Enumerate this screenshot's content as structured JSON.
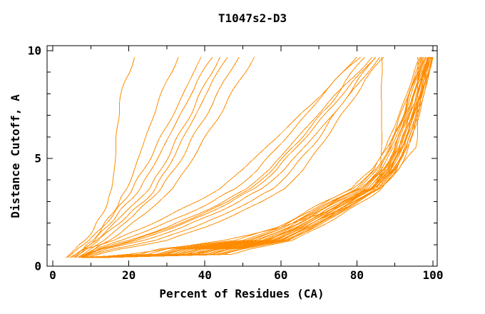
{
  "page": {
    "background_color": "#ffffff",
    "text_color": "#000000"
  },
  "chart_data": {
    "type": "line",
    "title": "T1047s2-D3",
    "xlabel": "Percent of Residues (CA)",
    "ylabel": "Distance Cutoff, A",
    "xlim": [
      0,
      100
    ],
    "ylim": [
      0,
      10
    ],
    "x_major_ticks": [
      0,
      20,
      40,
      60,
      80,
      100
    ],
    "x_minor_ticks": [
      10,
      30,
      50,
      70,
      90
    ],
    "y_major_ticks": [
      0,
      5,
      10
    ],
    "y_minor_ticks": [
      1,
      2,
      3,
      4,
      6,
      7,
      8,
      9
    ],
    "grid": false,
    "legend": "none",
    "line_color": "#ff8c00",
    "axis_color": "#000000",
    "curve_count": 40,
    "y_levels": [
      0.4,
      0.55,
      0.8,
      1.2,
      1.8,
      2.4,
      3.0,
      3.6,
      4.5,
      5.5,
      6.5,
      7.5,
      8.6,
      9.7
    ],
    "series_x_at_y_levels": [
      [
        10,
        35,
        40,
        57,
        64,
        70,
        76,
        83,
        88,
        91,
        93,
        95,
        97,
        99
      ],
      [
        11,
        38,
        43,
        59,
        66,
        72,
        78,
        84,
        89,
        92,
        94,
        96,
        97.5,
        99.5
      ],
      [
        9,
        31,
        36,
        55,
        63,
        69,
        75,
        82,
        87,
        90,
        92,
        94,
        96,
        98
      ],
      [
        12,
        41,
        46,
        60,
        67,
        73,
        79,
        85,
        89.5,
        92.5,
        94.5,
        96,
        98,
        99.8
      ],
      [
        8,
        27,
        32,
        52,
        61,
        67,
        73,
        80,
        85,
        88.5,
        91,
        93,
        95,
        97
      ],
      [
        13,
        43,
        48,
        61,
        68,
        74,
        80,
        85.5,
        90,
        93,
        95,
        96.5,
        98,
        100
      ],
      [
        10,
        33,
        38,
        56,
        64.5,
        70.5,
        76.5,
        83,
        87.5,
        90.5,
        92.5,
        94.5,
        96.5,
        98.5
      ],
      [
        11,
        37,
        42,
        58,
        65.5,
        71.5,
        77.5,
        84,
        88.5,
        91.5,
        93.5,
        95.5,
        97,
        99
      ],
      [
        9.5,
        29,
        34,
        53,
        62,
        68,
        74,
        81,
        86,
        89,
        91.5,
        93.5,
        95.5,
        97.5
      ],
      [
        12.5,
        40,
        45,
        59.5,
        66.5,
        72.5,
        78.5,
        84.5,
        89,
        92,
        94,
        95.8,
        97.6,
        99.4
      ],
      [
        8.5,
        25,
        30,
        50,
        60,
        66,
        72,
        79,
        84.5,
        88,
        90.5,
        92.5,
        94.8,
        96.8
      ],
      [
        13.5,
        45,
        50,
        62,
        69,
        75,
        80.5,
        86,
        90.5,
        93.2,
        95.2,
        96.8,
        98.3,
        100
      ],
      [
        10.5,
        34,
        39,
        56.5,
        65,
        71,
        77,
        83.5,
        88,
        91,
        93,
        95,
        96.8,
        98.8
      ],
      [
        11.5,
        39,
        44,
        58.5,
        66,
        72,
        78,
        84.2,
        88.8,
        91.8,
        93.8,
        95.6,
        97.2,
        99.2
      ],
      [
        9,
        30,
        35,
        54,
        62.5,
        68.5,
        74.5,
        81.5,
        86.5,
        89.5,
        92,
        94,
        96,
        98
      ],
      [
        12,
        42,
        47,
        60.5,
        67.5,
        73.5,
        79.5,
        85,
        89.8,
        92.8,
        94.8,
        96.3,
        98,
        99.6
      ],
      [
        7.5,
        23,
        28,
        48,
        59,
        65.5,
        71.5,
        78.5,
        84,
        87.5,
        90,
        92,
        94.4,
        96.5
      ],
      [
        14,
        47,
        52,
        63,
        70,
        76,
        81.5,
        86.5,
        91,
        93.5,
        95.5,
        97,
        98.6,
        100
      ],
      [
        10,
        32,
        37,
        55.5,
        64,
        70,
        76,
        82.5,
        87.2,
        90.2,
        92.2,
        94.2,
        96.2,
        98.2
      ],
      [
        11,
        36,
        41,
        57.5,
        65,
        71,
        77,
        83.8,
        88.2,
        91.2,
        93.2,
        95.2,
        96.9,
        98.9
      ],
      [
        9.5,
        28,
        33,
        51,
        61,
        67.5,
        73.5,
        80.5,
        85.5,
        88.8,
        91.2,
        93.2,
        95.2,
        97.2
      ],
      [
        13,
        44,
        49,
        61.5,
        68.5,
        74.5,
        80,
        85.8,
        90.2,
        93,
        95,
        96.6,
        98.2,
        99.8
      ],
      [
        7,
        9,
        12,
        20,
        30,
        38,
        45,
        51,
        57,
        62,
        67,
        72,
        78,
        84
      ],
      [
        8,
        10,
        14,
        24,
        34,
        42,
        49,
        55,
        61,
        66,
        71,
        76,
        81,
        86
      ],
      [
        6.5,
        8.5,
        11,
        18,
        27,
        35,
        42,
        48,
        54,
        59,
        64,
        69,
        74,
        80
      ],
      [
        7.5,
        9.5,
        13,
        22,
        32,
        40,
        47,
        53,
        59,
        64,
        69,
        74,
        79,
        85
      ],
      [
        8.5,
        11,
        16,
        27,
        37,
        45,
        52,
        58,
        63,
        68,
        72,
        76,
        80,
        85
      ],
      [
        7,
        9,
        12.5,
        21,
        31,
        39,
        46,
        52,
        58,
        63,
        68,
        73,
        77,
        82
      ],
      [
        9,
        12,
        18,
        30,
        40,
        48,
        55,
        61,
        66,
        70,
        74,
        78,
        82,
        87
      ],
      [
        4.5,
        6,
        8.5,
        16,
        24,
        31,
        38,
        44,
        50,
        56,
        62,
        68,
        74,
        81
      ],
      [
        5.5,
        6.5,
        8,
        11,
        14,
        17,
        20,
        23,
        26,
        29,
        32,
        35,
        38,
        42
      ],
      [
        6,
        7,
        9,
        12,
        16,
        20,
        24,
        27,
        30,
        33,
        36,
        39,
        42,
        46
      ],
      [
        3.8,
        5,
        6.5,
        9.5,
        13,
        16,
        18.5,
        21,
        24,
        27,
        30,
        33,
        36,
        39
      ],
      [
        6.5,
        8,
        10,
        13.5,
        17.5,
        21.5,
        25,
        28.5,
        32,
        35.5,
        38.5,
        42,
        45,
        49
      ],
      [
        5.8,
        7,
        8.5,
        11.5,
        15,
        18.5,
        22,
        25.5,
        28.5,
        31.5,
        34.5,
        37.5,
        40.5,
        44
      ],
      [
        7,
        8.5,
        11,
        15,
        19.5,
        24,
        28,
        31.5,
        35,
        38.5,
        42,
        45.5,
        49,
        53
      ],
      [
        3.5,
        4.5,
        6,
        8.5,
        11,
        13,
        14.5,
        15.5,
        16.2,
        16.6,
        17,
        17.5,
        19,
        21.5
      ],
      [
        5,
        6,
        8,
        10.5,
        13,
        15.5,
        17.5,
        19.5,
        21.5,
        23.5,
        25.5,
        27.5,
        30,
        33
      ],
      [
        10,
        20,
        30,
        45,
        60,
        70,
        78,
        84,
        86.5,
        86.5,
        86.5,
        86.5,
        86.5,
        86.5
      ],
      [
        12,
        35,
        44,
        58,
        66,
        73,
        80,
        86,
        91,
        95.5,
        96,
        96,
        96,
        96
      ]
    ]
  }
}
